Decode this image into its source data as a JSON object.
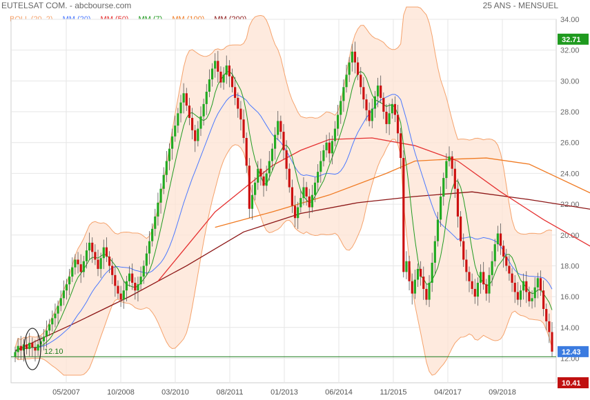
{
  "header": {
    "title": "EUTELSAT COM. - abcbourse.com",
    "period": "25 ANS - MENSUEL"
  },
  "legend": [
    {
      "label": "BOLL (20, 2)",
      "color": "#f5a26b"
    },
    {
      "label": "MM (20)",
      "color": "#4a78ff"
    },
    {
      "label": "MM (50)",
      "color": "#e53030"
    },
    {
      "label": "MM (7)",
      "color": "#1f9a1f"
    },
    {
      "label": "MM (100)",
      "color": "#f07a22"
    },
    {
      "label": "MM (200)",
      "color": "#8b1414"
    }
  ],
  "chart_data": {
    "type": "candlestick",
    "x_ticks": [
      "05/2007",
      "10/2008",
      "03/2010",
      "08/2011",
      "01/2013",
      "06/2014",
      "11/2015",
      "04/2017",
      "09/2018"
    ],
    "y_ticks": [
      "12.00",
      "14.00",
      "16.00",
      "18.00",
      "20.00",
      "22.00",
      "24.00",
      "26.00",
      "28.00",
      "30.00",
      "32.00",
      "34.00"
    ],
    "ylim": [
      10.41,
      34.0
    ],
    "grid": true,
    "colors": {
      "up": "#22aa22",
      "down": "#cc1111",
      "band_fill": "#fde3d3",
      "band_line": "#f5a26b",
      "support": "#1a7a1a"
    },
    "price_tags": [
      {
        "label": "32.71",
        "value": 32.71,
        "color": "#1f9a1f"
      },
      {
        "label": "12.43",
        "value": 12.43,
        "color": "#3b7be0"
      },
      {
        "label": "10.41",
        "value": 10.41,
        "color": "#c01010"
      }
    ],
    "annotation": {
      "label": "12.10",
      "value": 12.1
    },
    "close": [
      12.4,
      12.8,
      12.5,
      12.9,
      12.6,
      13.0,
      12.7,
      12.5,
      12.9,
      13.1,
      13.4,
      13.8,
      14.2,
      14.6,
      14.9,
      15.4,
      15.9,
      16.4,
      16.8,
      17.3,
      17.9,
      18.4,
      18.1,
      17.6,
      18.3,
      19.0,
      19.5,
      18.9,
      18.4,
      17.8,
      18.5,
      19.2,
      18.6,
      18.0,
      17.4,
      16.7,
      16.2,
      15.8,
      16.4,
      17.0,
      17.5,
      16.9,
      16.4,
      16.8,
      17.3,
      18.0,
      18.8,
      19.6,
      20.4,
      21.2,
      22.1,
      23.0,
      23.9,
      24.8,
      25.6,
      26.4,
      27.1,
      27.9,
      28.6,
      29.2,
      28.4,
      27.6,
      26.8,
      26.1,
      26.9,
      27.7,
      28.5,
      29.3,
      30.1,
      30.8,
      31.3,
      30.6,
      29.9,
      30.4,
      31.0,
      30.3,
      29.6,
      28.9,
      28.2,
      27.5,
      26.3,
      24.5,
      21.7,
      22.6,
      23.4,
      24.3,
      23.8,
      23.2,
      24.0,
      24.8,
      25.6,
      26.5,
      27.4,
      26.7,
      25.5,
      24.3,
      23.1,
      21.9,
      21.1,
      21.8,
      22.4,
      23.1,
      22.5,
      21.8,
      22.6,
      23.4,
      24.1,
      24.8,
      25.5,
      26.0,
      25.3,
      26.1,
      26.9,
      27.8,
      28.7,
      29.6,
      30.4,
      31.2,
      31.9,
      31.2,
      30.4,
      29.6,
      28.8,
      28.1,
      27.4,
      28.2,
      29.0,
      29.7,
      28.9,
      28.0,
      27.2,
      27.9,
      28.5,
      27.8,
      26.6,
      25.0,
      17.6,
      18.3,
      17.0,
      16.2,
      17.1,
      17.8,
      17.3,
      16.5,
      15.8,
      16.9,
      18.2,
      19.6,
      21.0,
      22.5,
      23.7,
      24.8,
      25.1,
      24.3,
      23.0,
      21.2,
      19.6,
      18.4,
      17.6,
      17.0,
      16.5,
      16.0,
      16.9,
      17.6,
      16.8,
      16.2,
      17.4,
      18.3,
      19.4,
      20.1,
      19.3,
      18.6,
      18.0,
      17.5,
      16.9,
      16.3,
      15.8,
      16.4,
      17.0,
      16.3,
      15.7,
      15.9,
      16.6,
      17.2,
      16.4,
      15.2,
      14.4,
      13.7,
      12.43
    ],
    "series": [
      {
        "name": "MM (200)",
        "x": [
          0,
          20,
          40,
          60,
          80,
          100,
          120,
          140,
          160,
          180,
          204
        ],
        "values": [
          12.5,
          14.2,
          16.0,
          18.0,
          20.2,
          21.4,
          22.1,
          22.5,
          22.8,
          22.3,
          21.6
        ]
      },
      {
        "name": "MM (100)",
        "x": [
          70,
          90,
          110,
          130,
          140,
          150,
          165,
          180,
          204
        ],
        "values": [
          20.5,
          21.5,
          22.6,
          24.0,
          24.8,
          24.9,
          25.0,
          24.6,
          22.5
        ]
      },
      {
        "name": "MM (50)",
        "x": [
          50,
          70,
          90,
          100,
          110,
          125,
          140,
          155,
          170,
          185,
          204
        ],
        "values": [
          17.0,
          21.5,
          24.5,
          25.5,
          26.2,
          26.3,
          25.8,
          24.8,
          22.8,
          21.0,
          19.0
        ]
      }
    ]
  }
}
